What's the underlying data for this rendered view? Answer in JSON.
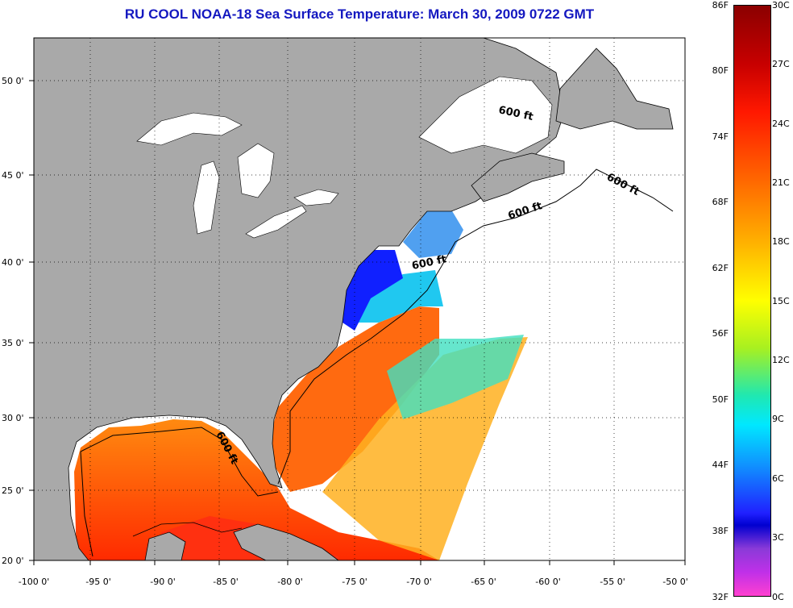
{
  "title": "RU COOL  NOAA-18  Sea Surface Temperature:  March 30, 2009 0722 GMT",
  "colors": {
    "land": "#a9a9a9",
    "title": "#1418c0",
    "warm": "#ff5a10",
    "cool": "#20c8ff",
    "cold": "#1020ff"
  },
  "axes": {
    "x_ticks": [
      "-100 0'",
      "-95 0'",
      "-90 0'",
      "-85 0'",
      "-80 0'",
      "-75 0'",
      "-70 0'",
      "-65 0'",
      "-60 0'",
      "-55 0'",
      "-50 0'"
    ],
    "y_ticks": [
      "50 0'",
      "45 0'",
      "40 0'",
      "35 0'",
      "30 0'",
      "25 0'",
      "20 0'"
    ]
  },
  "contour_labels": [
    "600 ft",
    "600 ft",
    "600 ft",
    "600 ft",
    "600 ft"
  ],
  "colorbar": {
    "fahrenheit": [
      "86F",
      "80F",
      "74F",
      "68F",
      "62F",
      "56F",
      "50F",
      "44F",
      "38F",
      "32F"
    ],
    "celsius": [
      "30C",
      "27C",
      "24C",
      "21C",
      "18C",
      "15C",
      "12C",
      "9C",
      "6C",
      "3C",
      "0C"
    ]
  }
}
